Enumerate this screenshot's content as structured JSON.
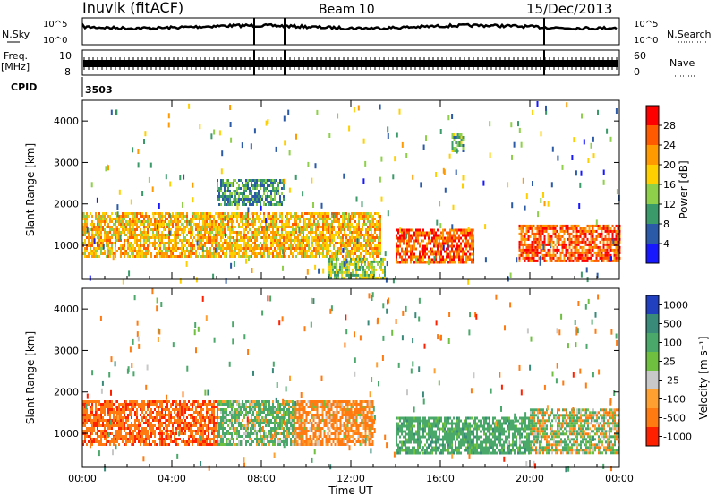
{
  "header": {
    "station": "Inuvik (fitACF)",
    "beam": "Beam 10",
    "date": "15/Dec/2013"
  },
  "noise_panel": {
    "left_label": "N.Sky",
    "right_label": "N.Search",
    "yticks_left": [
      "10^5",
      "10^0"
    ],
    "yticks_right": [
      "10^5",
      "10^0"
    ]
  },
  "freq_panel": {
    "left_label_top": "Freq.",
    "left_label_bottom": "[MHz]",
    "right_label": "Nave",
    "yticks_left": [
      "10",
      "8"
    ],
    "yticks_right": [
      "60",
      "0"
    ]
  },
  "cpid": {
    "label": "CPID",
    "value": "3503"
  },
  "x_axis": {
    "label": "Time UT",
    "ticks": [
      "00:00",
      "04:00",
      "08:00",
      "12:00",
      "16:00",
      "20:00",
      "00:00"
    ]
  },
  "colorbars": {
    "power": {
      "label": "Power [dB]",
      "ticks": [
        "28",
        "24",
        "20",
        "16",
        "12",
        "8",
        "4"
      ],
      "colors": [
        "#ff0000",
        "#ff5a00",
        "#ff9a00",
        "#ffd000",
        "#8ed04a",
        "#3a9a6a",
        "#2a5aa8",
        "#1818ff"
      ]
    },
    "velocity": {
      "label": "Velocity [m s⁻¹]",
      "ticks": [
        "1000",
        "500",
        "100",
        "25",
        "-25",
        "-100",
        "-500",
        "-1000"
      ],
      "colors": [
        "#2040c0",
        "#3a8a7a",
        "#4aa86a",
        "#70c040",
        "#c8c8c8",
        "#ffa030",
        "#ff7a10",
        "#ff2000"
      ]
    }
  },
  "chart_data": [
    {
      "type": "heatmap",
      "title": "Power",
      "ylabel": "Slant Range [km]",
      "yticks": [
        "4000",
        "3000",
        "2000",
        "1000"
      ],
      "xlim": [
        "00:00",
        "24:00"
      ],
      "ylim": [
        180,
        4500
      ],
      "zlabel": "Power [dB]",
      "zlim": [
        0,
        32
      ],
      "regions": [
        {
          "t_start": 0.0,
          "t_end": 13.3,
          "range_low": 700,
          "range_high": 1800,
          "level_db": 22
        },
        {
          "t_start": 14.0,
          "t_end": 17.5,
          "range_low": 600,
          "range_high": 1400,
          "level_db": 28
        },
        {
          "t_start": 19.5,
          "t_end": 24.0,
          "range_low": 600,
          "range_high": 1500,
          "level_db": 28
        },
        {
          "t_start": 6.0,
          "t_end": 9.0,
          "range_low": 2000,
          "range_high": 2600,
          "level_db": 12
        },
        {
          "t_start": 16.5,
          "t_end": 17.0,
          "range_low": 3300,
          "range_high": 3700,
          "level_db": 14
        },
        {
          "t_start": 11.0,
          "t_end": 13.5,
          "range_low": 200,
          "range_high": 700,
          "level_db": 16
        }
      ]
    },
    {
      "type": "heatmap",
      "title": "Velocity",
      "ylabel": "Slant Range [km]",
      "yticks": [
        "4000",
        "3000",
        "2000",
        "1000"
      ],
      "xlim": [
        "00:00",
        "24:00"
      ],
      "ylim": [
        180,
        4500
      ],
      "zlabel": "Velocity [m s⁻¹]",
      "zlim": [
        -1000,
        1000
      ],
      "regions": [
        {
          "t_start": 0.0,
          "t_end": 6.0,
          "range_low": 700,
          "range_high": 1800,
          "velocity": -400
        },
        {
          "t_start": 6.0,
          "t_end": 9.5,
          "range_low": 700,
          "range_high": 1800,
          "velocity": 150
        },
        {
          "t_start": 9.5,
          "t_end": 13.0,
          "range_low": 700,
          "range_high": 1800,
          "velocity": -200
        },
        {
          "t_start": 14.0,
          "t_end": 20.0,
          "range_low": 500,
          "range_high": 1400,
          "velocity": 300
        },
        {
          "t_start": 20.0,
          "t_end": 24.0,
          "range_low": 500,
          "range_high": 1600,
          "velocity": 60
        }
      ]
    }
  ]
}
